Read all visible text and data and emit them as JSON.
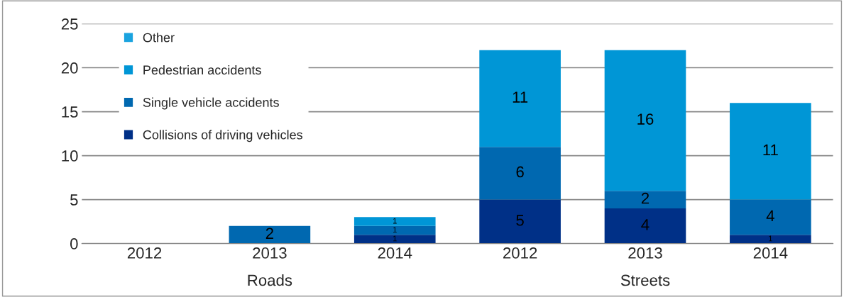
{
  "chart_data": {
    "type": "bar",
    "stacked": true,
    "categories": [
      "2012",
      "2013",
      "2014",
      "2012",
      "2013",
      "2014"
    ],
    "series": [
      {
        "name": "Collisions of driving vehicles",
        "color": "#003087",
        "values": [
          0,
          0,
          1,
          5,
          4,
          1
        ],
        "value_labels": [
          null,
          null,
          "1",
          "5",
          "4",
          "1"
        ]
      },
      {
        "name": "Single vehicle accidents",
        "color": "#0068b0",
        "values": [
          0,
          2,
          1,
          6,
          2,
          4
        ],
        "value_labels": [
          null,
          "2",
          "1",
          "6",
          "2",
          "4"
        ]
      },
      {
        "name": "Pedestrian accidents",
        "color": "#0096d6",
        "values": [
          0,
          0,
          1,
          11,
          16,
          11
        ],
        "value_labels": [
          null,
          null,
          "1",
          "11",
          "16",
          "11"
        ]
      },
      {
        "name": "Other",
        "color": "#1aa3df",
        "values": [
          0,
          0,
          0,
          0,
          0,
          0
        ],
        "value_labels": [
          null,
          null,
          null,
          null,
          null,
          null
        ]
      }
    ],
    "ylim": [
      0,
      25
    ],
    "yticks": [
      0,
      5,
      10,
      15,
      20,
      25
    ],
    "grid": "y",
    "legend": "top left",
    "annotations": [
      "Roads",
      "Streets"
    ]
  }
}
